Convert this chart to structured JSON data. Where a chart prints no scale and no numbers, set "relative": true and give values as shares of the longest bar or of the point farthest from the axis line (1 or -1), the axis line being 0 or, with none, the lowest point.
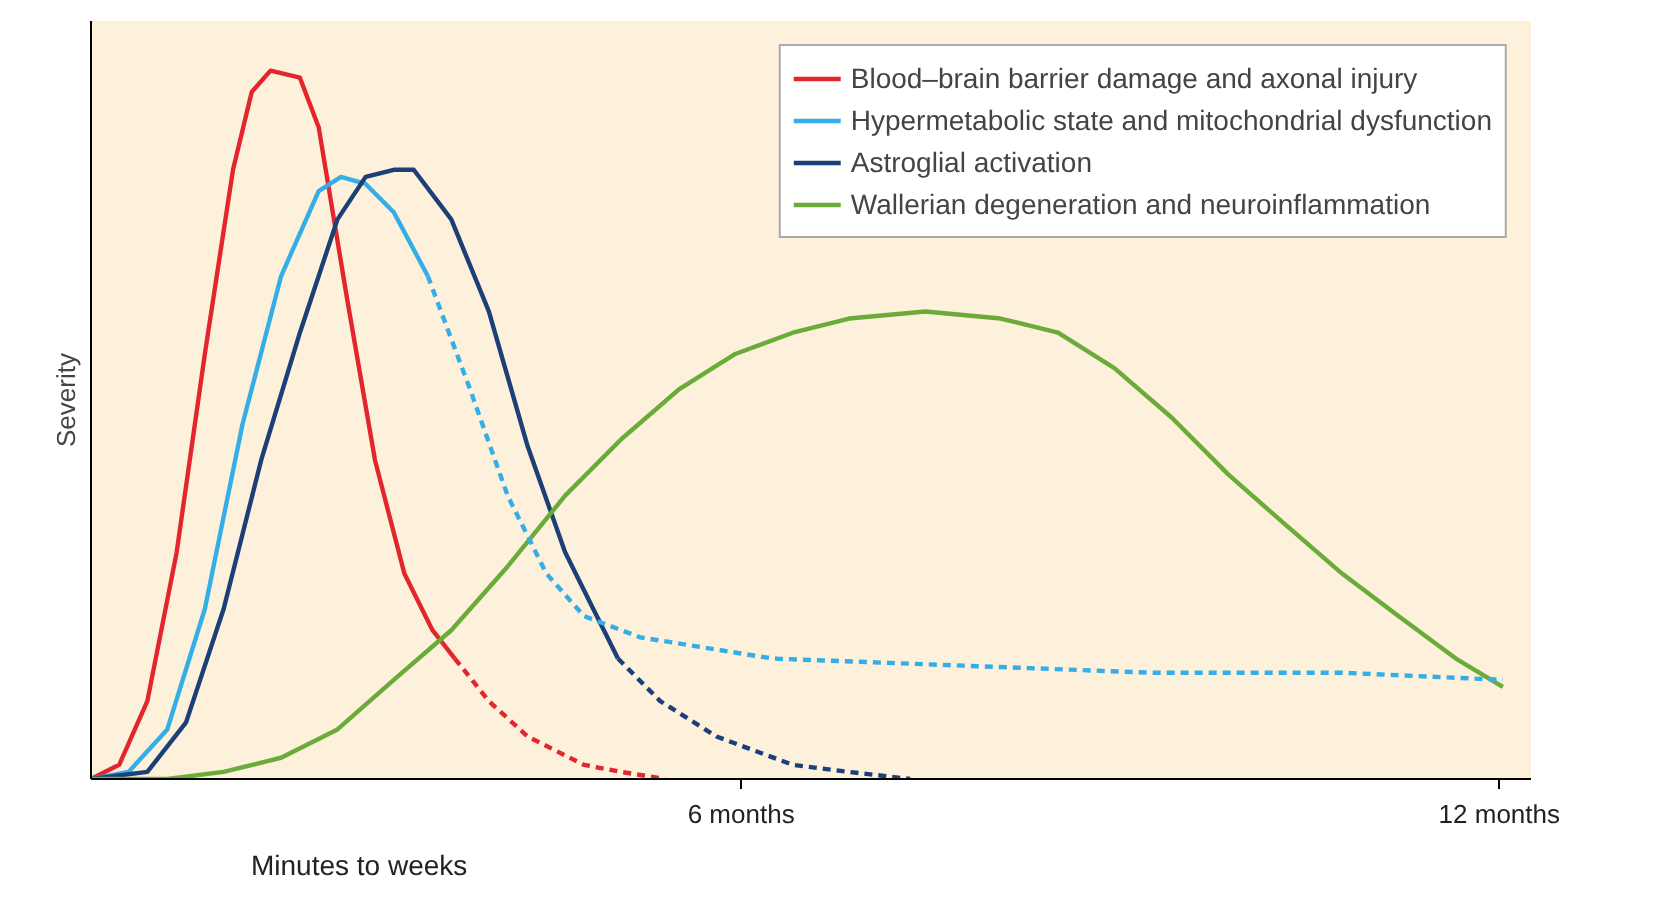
{
  "chart_data": {
    "type": "line",
    "relative": true,
    "ylabel": "Severity",
    "xlim": [
      0,
      12.27
    ],
    "xticks": [
      {
        "value": 5.54,
        "label": "6 months"
      },
      {
        "value": 12,
        "label": "12 months"
      }
    ],
    "legend": "top right",
    "grid": false,
    "marker": "none",
    "annotations": [
      "Minutes to weeks"
    ],
    "series": [
      {
        "name": "Blood–brain barrier damage and axonal injury",
        "color": "#e3262d",
        "line_style": "solid",
        "x": [
          0,
          0.24,
          0.48,
          0.73,
          0.97,
          1.21,
          1.37,
          1.53,
          1.78,
          1.94,
          2.18,
          2.42,
          2.67,
          2.91,
          3.1
        ],
        "values": [
          0,
          0.02,
          0.11,
          0.32,
          0.6,
          0.86,
          0.97,
          1,
          0.99,
          0.92,
          0.68,
          0.45,
          0.29,
          0.21,
          0.17
        ]
      },
      {
        "name": "Hypermetabolic state and mitochondrial dysfunction",
        "color": "#35aee8",
        "line_style": "solid",
        "x": [
          0,
          0.32,
          0.65,
          0.97,
          1.29,
          1.62,
          1.94,
          2.13,
          2.34,
          2.58,
          2.87
        ],
        "values": [
          0,
          0.01,
          0.07,
          0.24,
          0.5,
          0.71,
          0.83,
          0.85,
          0.84,
          0.8,
          0.71
        ]
      },
      {
        "name": "Astroglial activation",
        "color": "#1c3f78",
        "line_style": "solid",
        "x": [
          0,
          0.48,
          0.81,
          1.13,
          1.45,
          1.78,
          2.1,
          2.34,
          2.58,
          2.75,
          3.07,
          3.39,
          3.72,
          4.04,
          4.28,
          4.49
        ],
        "values": [
          0,
          0.01,
          0.08,
          0.24,
          0.45,
          0.63,
          0.79,
          0.85,
          0.86,
          0.86,
          0.79,
          0.66,
          0.47,
          0.32,
          0.24,
          0.17
        ]
      },
      {
        "name": "Wallerian degeneration and neuroinflammation",
        "color": "#6aab3a",
        "line_style": "solid",
        "x": [
          0,
          0.65,
          1.13,
          1.62,
          2.1,
          2.58,
          3.07,
          3.55,
          4.04,
          4.52,
          5.01,
          5.49,
          5.98,
          6.46,
          7.11,
          7.75,
          8.24,
          8.72,
          9.21,
          9.69,
          10.17,
          10.66,
          11.14,
          11.63,
          12.03
        ],
        "values": [
          0,
          0,
          0.01,
          0.03,
          0.07,
          0.14,
          0.21,
          0.3,
          0.4,
          0.48,
          0.55,
          0.6,
          0.63,
          0.65,
          0.66,
          0.65,
          0.63,
          0.58,
          0.51,
          0.43,
          0.36,
          0.29,
          0.23,
          0.17,
          0.13
        ]
      },
      {
        "color": "#e3262d",
        "line_style": "dotted",
        "x": [
          3.1,
          3.39,
          3.72,
          4.2,
          4.52,
          4.89
        ],
        "values": [
          0.17,
          0.11,
          0.06,
          0.02,
          0.01,
          0
        ]
      },
      {
        "color": "#35aee8",
        "line_style": "dotted",
        "x": [
          2.87,
          3.23,
          3.55,
          3.88,
          4.2,
          4.68,
          5.81,
          7.43,
          9.04,
          10.66,
          12.03
        ],
        "values": [
          0.71,
          0.55,
          0.4,
          0.29,
          0.23,
          0.2,
          0.17,
          0.16,
          0.15,
          0.15,
          0.14
        ]
      },
      {
        "color": "#1c3f78",
        "line_style": "dotted",
        "x": [
          4.49,
          4.85,
          5.33,
          5.98,
          6.46,
          6.98
        ],
        "values": [
          0.17,
          0.11,
          0.06,
          0.02,
          0.01,
          0
        ]
      }
    ]
  }
}
